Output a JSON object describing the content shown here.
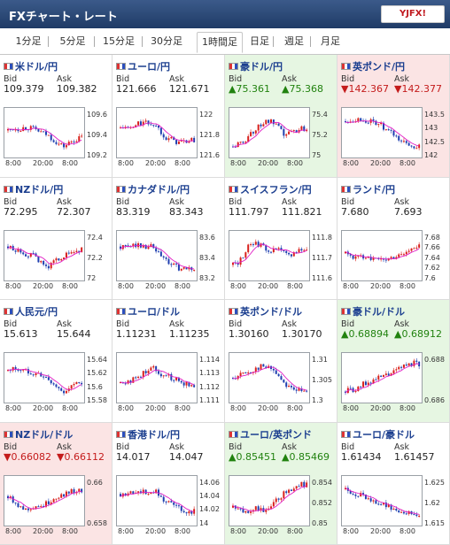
{
  "header": {
    "title": "FXチャート・レート",
    "logo": "YJFX!"
  },
  "tabs": [
    {
      "label": "1分足",
      "active": false
    },
    {
      "label": "5分足",
      "active": false
    },
    {
      "label": "15分足",
      "active": false
    },
    {
      "label": "30分足",
      "active": false
    },
    {
      "label": "1時間足",
      "active": true
    },
    {
      "label": "日足",
      "active": false
    },
    {
      "label": "週足",
      "active": false
    },
    {
      "label": "月足",
      "active": false
    }
  ],
  "labels": {
    "bid": "Bid",
    "ask": "Ask"
  },
  "colors": {
    "up_bg": "#e6f6e2",
    "down_bg": "#fbe4e4",
    "bull": "#d8201c",
    "bear": "#1f3fb0",
    "ma": "#e11ec5"
  },
  "cells": [
    {
      "pair": "米ドル/円",
      "bid": "109.379",
      "ask": "109.382",
      "dir": "none",
      "yticks": [
        "109.6",
        "109.4",
        "109.2"
      ],
      "xticks": [
        "8:00",
        "20:00",
        "8:00"
      ],
      "trend": [
        0.55,
        0.6,
        0.58,
        0.62,
        0.6,
        0.56,
        0.5,
        0.45,
        0.35,
        0.25,
        0.2,
        0.3,
        0.35,
        0.4
      ]
    },
    {
      "pair": "ユーロ/円",
      "bid": "121.666",
      "ask": "121.671",
      "dir": "none",
      "yticks": [
        "122",
        "121.8",
        "121.6"
      ],
      "xticks": [
        "8:00",
        "20:00",
        "8:00"
      ],
      "trend": [
        0.6,
        0.62,
        0.58,
        0.7,
        0.72,
        0.7,
        0.68,
        0.55,
        0.4,
        0.35,
        0.3,
        0.3,
        0.32,
        0.34
      ]
    },
    {
      "pair": "豪ドル/円",
      "bid": "75.361",
      "ask": "75.368",
      "dir": "up",
      "bid_text": "▲75.361",
      "ask_text": "▲75.368",
      "yticks": [
        "75.4",
        "75.2",
        "75"
      ],
      "xticks": [
        "8:00",
        "20:00",
        "8:00"
      ],
      "trend": [
        0.2,
        0.25,
        0.3,
        0.5,
        0.55,
        0.7,
        0.75,
        0.72,
        0.6,
        0.45,
        0.5,
        0.55,
        0.6,
        0.58
      ]
    },
    {
      "pair": "英ポンド/円",
      "bid": "142.367",
      "ask": "142.377",
      "dir": "down",
      "bid_text": "▼142.367",
      "ask_text": "▼142.377",
      "yticks": [
        "143.5",
        "143",
        "142.5",
        "142"
      ],
      "xticks": [
        "8:00",
        "20:00",
        "8:00"
      ],
      "trend": [
        0.75,
        0.78,
        0.8,
        0.78,
        0.75,
        0.72,
        0.7,
        0.55,
        0.5,
        0.4,
        0.3,
        0.25,
        0.2,
        0.22
      ]
    },
    {
      "pair": "NZドル/円",
      "bid": "72.295",
      "ask": "72.307",
      "dir": "none",
      "yticks": [
        "72.4",
        "72.2",
        "72"
      ],
      "xticks": [
        "8:00",
        "20:00",
        "8:00"
      ],
      "trend": [
        0.7,
        0.6,
        0.62,
        0.55,
        0.5,
        0.48,
        0.3,
        0.25,
        0.35,
        0.45,
        0.5,
        0.55,
        0.6,
        0.62
      ]
    },
    {
      "pair": "カナダドル/円",
      "bid": "83.319",
      "ask": "83.343",
      "dir": "none",
      "yticks": [
        "83.6",
        "83.4",
        "83.2"
      ],
      "xticks": [
        "8:00",
        "20:00",
        "8:00"
      ],
      "trend": [
        0.7,
        0.68,
        0.72,
        0.75,
        0.7,
        0.72,
        0.65,
        0.5,
        0.4,
        0.3,
        0.25,
        0.2,
        0.2,
        0.22
      ]
    },
    {
      "pair": "スイスフラン/円",
      "bid": "111.797",
      "ask": "111.821",
      "dir": "none",
      "yticks": [
        "111.8",
        "111.7",
        "111.6"
      ],
      "xticks": [
        "8:00",
        "20:00",
        "8:00"
      ],
      "trend": [
        0.3,
        0.35,
        0.55,
        0.75,
        0.8,
        0.7,
        0.65,
        0.6,
        0.65,
        0.55,
        0.5,
        0.6,
        0.65,
        0.62
      ]
    },
    {
      "pair": "ランド/円",
      "bid": "7.680",
      "ask": "7.693",
      "dir": "none",
      "yticks": [
        "7.68",
        "7.66",
        "7.64",
        "7.62",
        "7.6"
      ],
      "xticks": [
        "8:00",
        "20:00",
        "8:00"
      ],
      "trend": [
        0.55,
        0.5,
        0.45,
        0.48,
        0.5,
        0.42,
        0.4,
        0.42,
        0.45,
        0.5,
        0.55,
        0.6,
        0.65,
        0.7
      ]
    },
    {
      "pair": "人民元/円",
      "bid": "15.613",
      "ask": "15.644",
      "dir": "none",
      "yticks": [
        "15.64",
        "15.62",
        "15.6",
        "15.58"
      ],
      "xticks": [
        "8:00",
        "20:00",
        "8:00"
      ],
      "trend": [
        0.65,
        0.7,
        0.68,
        0.65,
        0.62,
        0.6,
        0.55,
        0.45,
        0.35,
        0.25,
        0.2,
        0.3,
        0.35,
        0.4
      ]
    },
    {
      "pair": "ユーロ/ドル",
      "bid": "1.11231",
      "ask": "1.11235",
      "dir": "none",
      "yticks": [
        "1.114",
        "1.113",
        "1.112",
        "1.111"
      ],
      "xticks": [
        "8:00",
        "20:00",
        "8:00"
      ],
      "trend": [
        0.4,
        0.42,
        0.45,
        0.5,
        0.6,
        0.7,
        0.72,
        0.6,
        0.55,
        0.5,
        0.45,
        0.4,
        0.35,
        0.3
      ]
    },
    {
      "pair": "英ポンド/ドル",
      "bid": "1.30160",
      "ask": "1.30170",
      "dir": "none",
      "yticks": [
        "1.31",
        "1.305",
        "1.3"
      ],
      "xticks": [
        "8:00",
        "20:00",
        "8:00"
      ],
      "trend": [
        0.5,
        0.55,
        0.6,
        0.62,
        0.7,
        0.75,
        0.72,
        0.7,
        0.55,
        0.4,
        0.3,
        0.25,
        0.2,
        0.18
      ]
    },
    {
      "pair": "豪ドル/ドル",
      "bid": "0.68894",
      "ask": "0.68912",
      "dir": "up",
      "bid_text": "▲0.68894",
      "ask_text": "▲0.68912",
      "yticks": [
        "0.688",
        "0.686"
      ],
      "xticks": [
        "8:00",
        "20:00",
        "8:00"
      ],
      "trend": [
        0.2,
        0.25,
        0.22,
        0.35,
        0.4,
        0.45,
        0.5,
        0.55,
        0.6,
        0.65,
        0.75,
        0.8,
        0.82,
        0.8
      ]
    },
    {
      "pair": "NZドル/ドル",
      "bid": "0.66082",
      "ask": "0.66112",
      "dir": "down",
      "bid_text": "▼0.66082",
      "ask_text": "▼0.66112",
      "yticks": [
        "0.66",
        "0.658"
      ],
      "xticks": [
        "8:00",
        "20:00",
        "8:00"
      ],
      "trend": [
        0.6,
        0.5,
        0.4,
        0.3,
        0.35,
        0.4,
        0.38,
        0.45,
        0.55,
        0.6,
        0.65,
        0.7,
        0.72,
        0.7
      ]
    },
    {
      "pair": "香港ドル/円",
      "bid": "14.017",
      "ask": "14.047",
      "dir": "none",
      "yticks": [
        "14.06",
        "14.04",
        "14.02",
        "14"
      ],
      "xticks": [
        "8:00",
        "20:00",
        "8:00"
      ],
      "trend": [
        0.65,
        0.62,
        0.7,
        0.72,
        0.68,
        0.7,
        0.72,
        0.6,
        0.5,
        0.45,
        0.35,
        0.3,
        0.25,
        0.3
      ]
    },
    {
      "pair": "ユーロ/英ポンド",
      "bid": "0.85451",
      "ask": "0.85469",
      "dir": "up",
      "bid_text": "▲0.85451",
      "ask_text": "▲0.85469",
      "yticks": [
        "0.854",
        "0.852",
        "0.85"
      ],
      "xticks": [
        "8:00",
        "20:00",
        "8:00"
      ],
      "trend": [
        0.35,
        0.3,
        0.25,
        0.3,
        0.35,
        0.3,
        0.28,
        0.4,
        0.55,
        0.65,
        0.75,
        0.82,
        0.85,
        0.84
      ]
    },
    {
      "pair": "ユーロ/豪ドル",
      "bid": "1.61434",
      "ask": "1.61457",
      "dir": "none",
      "yticks": [
        "1.625",
        "1.62",
        "1.615"
      ],
      "xticks": [
        "8:00",
        "20:00",
        "8:00"
      ],
      "trend": [
        0.75,
        0.7,
        0.65,
        0.6,
        0.55,
        0.5,
        0.45,
        0.4,
        0.35,
        0.3,
        0.28,
        0.25,
        0.22,
        0.2
      ]
    }
  ]
}
